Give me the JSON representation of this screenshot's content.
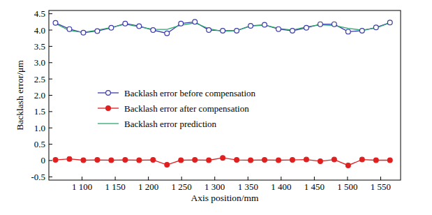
{
  "chart_data": {
    "type": "line",
    "x_label": "Axis position/mm",
    "y_label": "Backlash error/μm",
    "x": [
      1060,
      1081,
      1102,
      1123,
      1144,
      1165,
      1186,
      1207,
      1228,
      1249,
      1270,
      1291,
      1312,
      1333,
      1354,
      1375,
      1396,
      1417,
      1438,
      1459,
      1480,
      1501,
      1522,
      1543,
      1564
    ],
    "series": [
      {
        "name": "Backlash error before compensation",
        "color": "#3a3aa8",
        "marker": "open_circle",
        "line_style": "solid",
        "values": [
          4.22,
          4.03,
          3.92,
          3.97,
          4.07,
          4.2,
          4.12,
          4.0,
          3.9,
          4.2,
          4.25,
          4.0,
          3.98,
          3.98,
          4.13,
          4.16,
          4.03,
          3.98,
          4.07,
          4.18,
          4.18,
          3.95,
          3.98,
          4.08,
          4.23
        ]
      },
      {
        "name": "Backlash error after compensation",
        "color": "#e02020",
        "marker": "circle",
        "line_style": "solid",
        "values": [
          0.02,
          0.05,
          0.01,
          0.02,
          0.01,
          0.02,
          0.01,
          0.02,
          -0.13,
          0.01,
          0.02,
          0.01,
          0.08,
          0.02,
          0.01,
          0.02,
          0.01,
          0.02,
          0.03,
          -0.02,
          0.03,
          -0.15,
          0.03,
          0.01,
          0.01
        ]
      },
      {
        "name": "Backlash error prediction",
        "color": "#2ca870",
        "marker": "none",
        "line_style": "solid",
        "values": [
          4.2,
          3.98,
          3.93,
          4.0,
          4.08,
          4.18,
          4.1,
          4.02,
          4.02,
          4.15,
          4.22,
          4.04,
          3.96,
          3.98,
          4.12,
          4.15,
          4.05,
          4.0,
          4.1,
          4.16,
          4.14,
          4.05,
          4.0,
          4.06,
          4.22
        ]
      }
    ],
    "xlim": [
      1050,
      1580
    ],
    "xticks": [
      {
        "value": 1100,
        "label": "1 100"
      },
      {
        "value": 1150,
        "label": "1 150"
      },
      {
        "value": 1200,
        "label": "1 200"
      },
      {
        "value": 1250,
        "label": "1 250"
      },
      {
        "value": 1300,
        "label": "1 300"
      },
      {
        "value": 1350,
        "label": "1 350"
      },
      {
        "value": 1400,
        "label": "1 400"
      },
      {
        "value": 1450,
        "label": "1 450"
      },
      {
        "value": 1500,
        "label": "1 500"
      },
      {
        "value": 1550,
        "label": "1 550"
      }
    ],
    "ylim": [
      -0.6,
      4.6
    ],
    "yticks": [
      -0.5,
      0,
      0.5,
      {
        "value": 1,
        "label": "1.0"
      },
      1.5,
      {
        "value": 2,
        "label": "2.0"
      },
      2.5,
      {
        "value": 3,
        "label": "3.0"
      },
      3.5,
      {
        "value": 4,
        "label": "4.0"
      },
      4.5
    ],
    "grid": false,
    "legend": "center"
  }
}
